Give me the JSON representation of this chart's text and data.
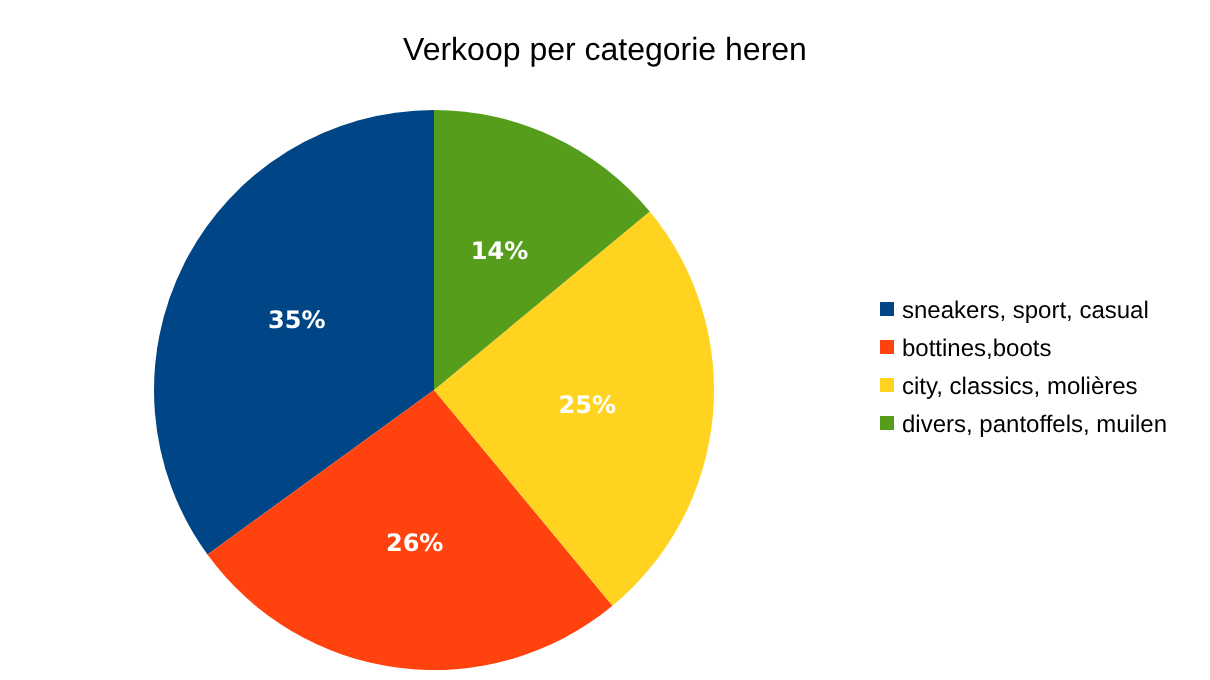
{
  "chart_data": {
    "type": "pie",
    "title": "Verkoop per categorie heren",
    "categories": [
      "sneakers, sport, casual",
      "bottines,boots",
      "city, classics, molières",
      "divers, pantoffels, muilen"
    ],
    "values": [
      35,
      26,
      25,
      14
    ],
    "colors": [
      "#004586",
      "#ff420e",
      "#ffd320",
      "#579d1c"
    ],
    "value_labels": [
      "35%",
      "26%",
      "25%",
      "14%"
    ],
    "legend": "right"
  }
}
